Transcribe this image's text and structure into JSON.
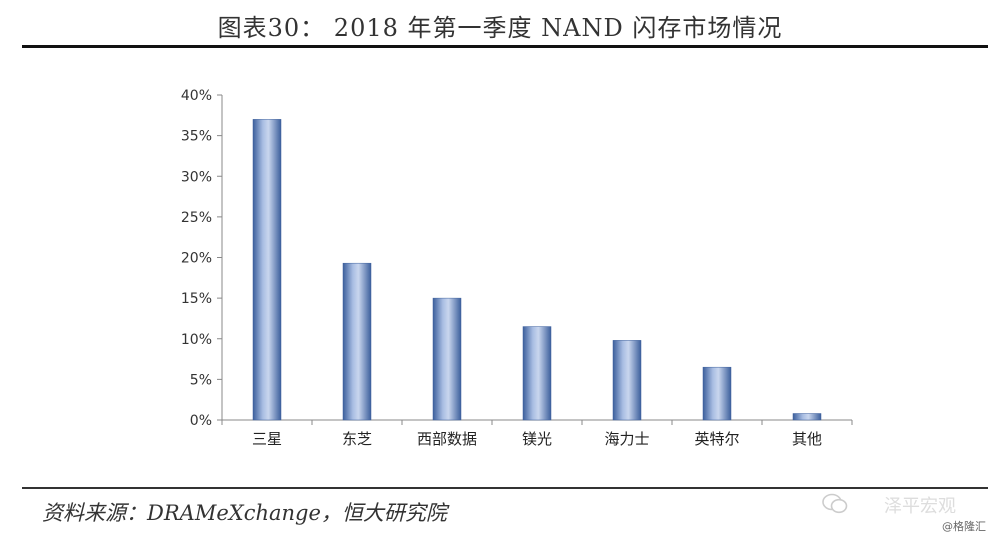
{
  "title": "图表30： 2018 年第一季度 NAND 闪存市场情况",
  "source": "资料来源：DRAMeXchange，恒大研究院",
  "watermark_main": "泽平宏观",
  "watermark_sub": "@格隆汇",
  "colors": {
    "bar_light": "#c9d6ee",
    "bar_dark": "#3c5f9c",
    "axis": "#888888"
  },
  "chart_data": {
    "type": "bar",
    "categories": [
      "三星",
      "东芝",
      "西部数据",
      "镁光",
      "海力士",
      "英特尔",
      "其他"
    ],
    "values": [
      37,
      19.3,
      15,
      11.5,
      9.8,
      6.5,
      0.8
    ],
    "ylim": [
      0,
      40
    ],
    "yticks": [
      "0%",
      "5%",
      "10%",
      "15%",
      "20%",
      "25%",
      "30%",
      "35%",
      "40%"
    ],
    "grid": false,
    "legend": "none"
  }
}
